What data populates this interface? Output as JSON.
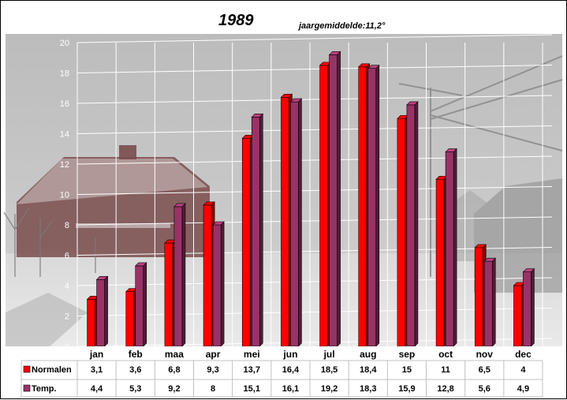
{
  "chart_data": {
    "type": "bar",
    "title": "1989",
    "subtitle": "jaargemiddelde:11,2°",
    "categories": [
      "jan",
      "feb",
      "maa",
      "apr",
      "mei",
      "jun",
      "jul",
      "aug",
      "sep",
      "oct",
      "nov",
      "dec"
    ],
    "series": [
      {
        "name": "Normalen",
        "color": "#ff0000",
        "values": [
          3.1,
          3.6,
          6.8,
          9.3,
          13.7,
          16.4,
          18.5,
          18.4,
          15,
          11,
          6.5,
          4
        ],
        "labels": [
          "3,1",
          "3,6",
          "6,8",
          "9,3",
          "13,7",
          "16,4",
          "18,5",
          "18,4",
          "15",
          "11",
          "6,5",
          "4"
        ]
      },
      {
        "name": "Temp.",
        "color": "#993366",
        "values": [
          4.4,
          5.3,
          9.2,
          8,
          15.1,
          16.1,
          19.2,
          18.3,
          15.9,
          12.8,
          5.6,
          4.9
        ],
        "labels": [
          "4,4",
          "5,3",
          "9,2",
          "8",
          "15,1",
          "16,1",
          "19,2",
          "18,3",
          "15,9",
          "12,8",
          "5,6",
          "4,9"
        ]
      }
    ],
    "ylim": [
      0,
      20
    ],
    "yticks": [
      "0",
      "2",
      "4",
      "6",
      "8",
      "10",
      "12",
      "14",
      "16",
      "18",
      "20"
    ],
    "grid": true,
    "legend": "data-table"
  }
}
